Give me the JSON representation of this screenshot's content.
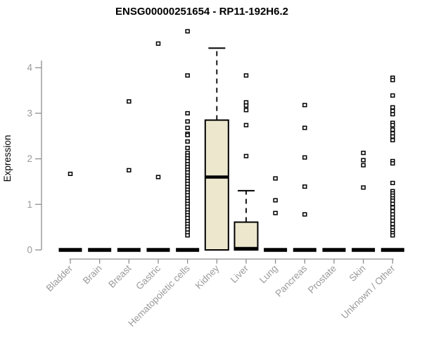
{
  "chart_data": {
    "type": "bar",
    "chart_kind": "boxplot-by-category",
    "title": "ENSG00000251654 - RP11-192H6.2",
    "xlabel": "",
    "ylabel": "Expression",
    "ylim": [
      0,
      4.8
    ],
    "yticks": [
      0,
      1,
      2,
      3,
      4
    ],
    "grid": false,
    "legend": null,
    "colors": {
      "box_fill": "#ece7cd",
      "box_border": "#000000",
      "median": "#000000",
      "outlier_stroke": "#000000",
      "axis": "#8e8e8e",
      "tick_label": "#9a9a9a",
      "title": "#000000",
      "background": "#ffffff"
    },
    "categories": [
      "Bladder",
      "Brain",
      "Breast",
      "Gastric",
      "Hematopoietic cells",
      "Kidney",
      "Liver",
      "Lung",
      "Pancreas",
      "Prostate",
      "Skin",
      "Unknown / Other"
    ],
    "series": [
      {
        "name": "Bladder",
        "type": "flat",
        "value": 0,
        "outliers": [
          1.67
        ]
      },
      {
        "name": "Brain",
        "type": "flat",
        "value": 0,
        "outliers": []
      },
      {
        "name": "Breast",
        "type": "flat",
        "value": 0,
        "outliers": [
          3.26,
          1.75
        ]
      },
      {
        "name": "Gastric",
        "type": "flat",
        "value": 0,
        "outliers": [
          4.53,
          1.6
        ]
      },
      {
        "name": "Hematopoietic cells",
        "type": "flat",
        "value": 0,
        "outliers": [
          4.8,
          3.83,
          3.0,
          2.82,
          2.68,
          2.55,
          2.52,
          2.38,
          2.24,
          2.13,
          2.07,
          2.01,
          1.95,
          1.88,
          1.82,
          1.76,
          1.7,
          1.63,
          1.57,
          1.51,
          1.45,
          1.38,
          1.32,
          1.26,
          1.2,
          1.13,
          1.07,
          1.01,
          0.95,
          0.88,
          0.82,
          0.76,
          0.7,
          0.63,
          0.57,
          0.51,
          0.45,
          0.38,
          0.32
        ]
      },
      {
        "name": "Kidney",
        "type": "box",
        "box": {
          "whisker_low": 0,
          "q1": 0,
          "median": 1.6,
          "q3": 2.85,
          "whisker_high": 4.43
        },
        "outliers": []
      },
      {
        "name": "Liver",
        "type": "box",
        "box": {
          "whisker_low": 0,
          "q1": 0,
          "median": 0.03,
          "q3": 0.61,
          "whisker_high": 1.3
        },
        "outliers": [
          3.83,
          3.24,
          3.17,
          3.07,
          2.74,
          2.06
        ]
      },
      {
        "name": "Lung",
        "type": "flat",
        "value": 0,
        "outliers": [
          1.57,
          1.09,
          0.81
        ]
      },
      {
        "name": "Pancreas",
        "type": "flat",
        "value": 0,
        "outliers": [
          3.18,
          2.68,
          2.03,
          1.39,
          0.78
        ]
      },
      {
        "name": "Prostate",
        "type": "flat",
        "value": 0,
        "outliers": []
      },
      {
        "name": "Skin",
        "type": "flat",
        "value": 0,
        "outliers": [
          2.13,
          1.97,
          1.86,
          1.37
        ]
      },
      {
        "name": "Unknown / Other",
        "type": "flat",
        "value": 0,
        "outliers": [
          3.78,
          3.73,
          3.39,
          3.13,
          3.05,
          2.98,
          2.79,
          2.74,
          2.64,
          2.56,
          2.49,
          2.41,
          1.95,
          1.9,
          1.47,
          1.29,
          1.24,
          1.19,
          1.13,
          1.08,
          1.01,
          0.93,
          0.85,
          0.78,
          0.71,
          0.64,
          0.57,
          0.49,
          0.43,
          0.37,
          0.32
        ]
      }
    ]
  }
}
